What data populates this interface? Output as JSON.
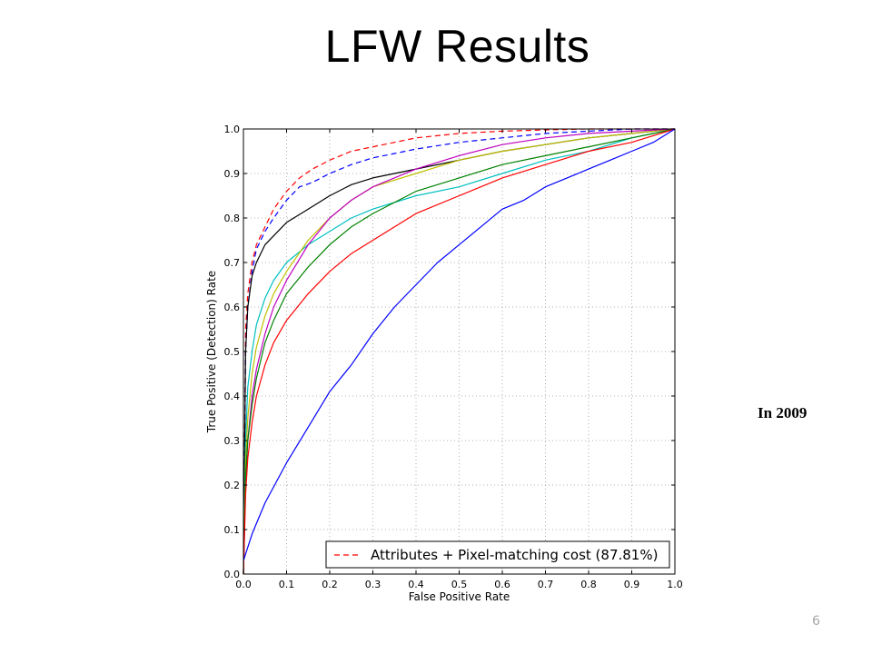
{
  "slide": {
    "title": "LFW Results",
    "note": "In 2009",
    "page_number": "6"
  },
  "chart_data": {
    "type": "line",
    "title": "",
    "xlabel": "False Positive Rate",
    "ylabel": "True Positive (Detection) Rate",
    "xlim": [
      0,
      1
    ],
    "ylim": [
      0,
      1
    ],
    "xticks": [
      "0.0",
      "0.1",
      "0.2",
      "0.3",
      "0.4",
      "0.5",
      "0.6",
      "0.7",
      "0.8",
      "0.9",
      "1.0"
    ],
    "yticks": [
      "0.0",
      "0.1",
      "0.2",
      "0.3",
      "0.4",
      "0.5",
      "0.6",
      "0.7",
      "0.8",
      "0.9",
      "1.0"
    ],
    "grid": true,
    "legend": {
      "placement": "lower-right",
      "entries": [
        {
          "label": "Attributes + Pixel-matching cost (87.81%)",
          "color": "#ff0000",
          "style": "dashed"
        }
      ]
    },
    "series": [
      {
        "color": "#ff0000",
        "style": "dashed",
        "x": [
          0,
          0.005,
          0.01,
          0.02,
          0.03,
          0.05,
          0.07,
          0.1,
          0.13,
          0.16,
          0.2,
          0.25,
          0.3,
          0.35,
          0.4,
          0.5,
          0.6,
          0.7,
          0.8,
          0.9,
          1.0
        ],
        "y": [
          0,
          0.55,
          0.63,
          0.7,
          0.74,
          0.78,
          0.82,
          0.86,
          0.89,
          0.91,
          0.93,
          0.95,
          0.96,
          0.97,
          0.98,
          0.99,
          0.995,
          0.998,
          1.0,
          1.0,
          1.0
        ]
      },
      {
        "color": "#0000ff",
        "style": "dashed",
        "x": [
          0,
          0.005,
          0.01,
          0.02,
          0.03,
          0.05,
          0.07,
          0.1,
          0.13,
          0.16,
          0.2,
          0.25,
          0.3,
          0.35,
          0.4,
          0.5,
          0.6,
          0.7,
          0.8,
          0.9,
          1.0
        ],
        "y": [
          0,
          0.5,
          0.6,
          0.68,
          0.73,
          0.77,
          0.8,
          0.84,
          0.87,
          0.88,
          0.9,
          0.92,
          0.935,
          0.945,
          0.955,
          0.97,
          0.98,
          0.99,
          0.995,
          1.0,
          1.0
        ]
      },
      {
        "color": "#000000",
        "style": "solid",
        "x": [
          0,
          0.005,
          0.01,
          0.02,
          0.03,
          0.05,
          0.07,
          0.1,
          0.15,
          0.2,
          0.25,
          0.3,
          0.4,
          0.5,
          0.6,
          0.7,
          0.8,
          0.9,
          1.0
        ],
        "y": [
          0,
          0.5,
          0.6,
          0.67,
          0.7,
          0.74,
          0.76,
          0.79,
          0.82,
          0.85,
          0.875,
          0.89,
          0.91,
          0.93,
          0.95,
          0.965,
          0.98,
          0.99,
          1.0
        ]
      },
      {
        "color": "#00bfbf",
        "style": "solid",
        "x": [
          0,
          0.005,
          0.01,
          0.02,
          0.03,
          0.05,
          0.07,
          0.1,
          0.15,
          0.2,
          0.25,
          0.3,
          0.4,
          0.5,
          0.6,
          0.7,
          0.8,
          0.9,
          1.0
        ],
        "y": [
          0,
          0.3,
          0.42,
          0.5,
          0.56,
          0.62,
          0.66,
          0.7,
          0.74,
          0.77,
          0.8,
          0.82,
          0.85,
          0.87,
          0.9,
          0.93,
          0.95,
          0.98,
          1.0
        ]
      },
      {
        "color": "#bfbf00",
        "style": "solid",
        "x": [
          0,
          0.005,
          0.01,
          0.02,
          0.03,
          0.05,
          0.07,
          0.1,
          0.15,
          0.2,
          0.25,
          0.3,
          0.4,
          0.5,
          0.6,
          0.7,
          0.8,
          0.9,
          1.0
        ],
        "y": [
          0,
          0.25,
          0.35,
          0.45,
          0.51,
          0.58,
          0.63,
          0.68,
          0.75,
          0.8,
          0.84,
          0.87,
          0.9,
          0.93,
          0.95,
          0.965,
          0.98,
          0.99,
          1.0
        ]
      },
      {
        "color": "#bf00bf",
        "style": "solid",
        "x": [
          0,
          0.005,
          0.01,
          0.02,
          0.03,
          0.05,
          0.07,
          0.1,
          0.15,
          0.2,
          0.25,
          0.3,
          0.4,
          0.5,
          0.6,
          0.7,
          0.8,
          0.9,
          1.0
        ],
        "y": [
          0,
          0.2,
          0.3,
          0.4,
          0.46,
          0.54,
          0.6,
          0.66,
          0.74,
          0.8,
          0.84,
          0.87,
          0.91,
          0.94,
          0.965,
          0.98,
          0.99,
          0.995,
          1.0
        ]
      },
      {
        "color": "#008000",
        "style": "solid",
        "x": [
          0,
          0.005,
          0.01,
          0.02,
          0.03,
          0.05,
          0.07,
          0.1,
          0.15,
          0.2,
          0.25,
          0.3,
          0.4,
          0.5,
          0.6,
          0.7,
          0.8,
          0.9,
          1.0
        ],
        "y": [
          0,
          0.22,
          0.3,
          0.38,
          0.44,
          0.52,
          0.57,
          0.63,
          0.69,
          0.74,
          0.78,
          0.81,
          0.86,
          0.89,
          0.92,
          0.94,
          0.96,
          0.98,
          1.0
        ]
      },
      {
        "color": "#ff0000",
        "style": "solid",
        "x": [
          0,
          0.005,
          0.01,
          0.02,
          0.03,
          0.05,
          0.07,
          0.1,
          0.15,
          0.2,
          0.25,
          0.3,
          0.4,
          0.5,
          0.6,
          0.7,
          0.8,
          0.9,
          1.0
        ],
        "y": [
          0,
          0.18,
          0.26,
          0.34,
          0.4,
          0.47,
          0.52,
          0.57,
          0.63,
          0.68,
          0.72,
          0.75,
          0.81,
          0.85,
          0.89,
          0.92,
          0.95,
          0.97,
          1.0
        ]
      },
      {
        "color": "#0000ff",
        "style": "solid",
        "x": [
          0,
          0.02,
          0.05,
          0.1,
          0.15,
          0.2,
          0.25,
          0.3,
          0.35,
          0.4,
          0.45,
          0.5,
          0.55,
          0.6,
          0.65,
          0.7,
          0.75,
          0.8,
          0.85,
          0.9,
          0.95,
          1.0
        ],
        "y": [
          0.03,
          0.09,
          0.16,
          0.25,
          0.33,
          0.41,
          0.47,
          0.54,
          0.6,
          0.65,
          0.7,
          0.74,
          0.78,
          0.82,
          0.84,
          0.87,
          0.89,
          0.91,
          0.93,
          0.95,
          0.97,
          1.0
        ]
      }
    ]
  }
}
